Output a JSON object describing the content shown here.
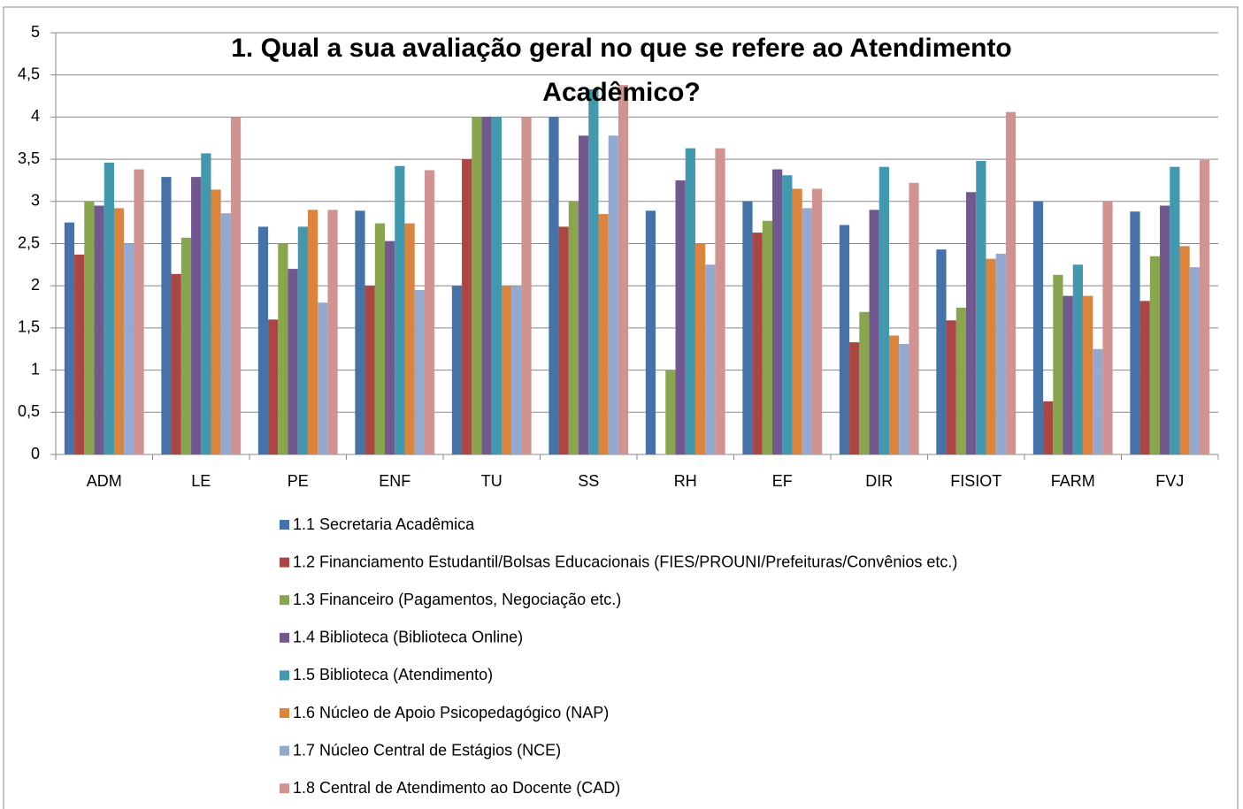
{
  "chart_data": {
    "type": "bar",
    "title": "1. Qual a sua avaliação geral no que se refere ao Atendimento Acadêmico?",
    "categories": [
      "ADM",
      "LE",
      "PE",
      "ENF",
      "TU",
      "SS",
      "RH",
      "EF",
      "DIR",
      "FISIOT",
      "FARM",
      "FVJ"
    ],
    "series": [
      {
        "name": "1.1 Secretaria Acadêmica",
        "color": "#4572a7",
        "values": [
          2.75,
          3.29,
          2.7,
          2.89,
          2.0,
          4.0,
          2.89,
          3.0,
          2.72,
          2.43,
          3.0,
          2.88
        ]
      },
      {
        "name": "1.2 Financiamento Estudantil/Bolsas Educacionais (FIES/PROUNI/Prefeituras/Convênios etc.)",
        "color": "#aa4643",
        "values": [
          2.37,
          2.14,
          1.6,
          2.0,
          3.5,
          2.7,
          0,
          2.63,
          1.33,
          1.59,
          0.63,
          1.82
        ]
      },
      {
        "name": "1.3 Financeiro (Pagamentos, Negociação etc.)",
        "color": "#89a54e",
        "values": [
          3.0,
          2.57,
          2.5,
          2.74,
          4.0,
          3.0,
          1.0,
          2.77,
          1.69,
          1.74,
          2.13,
          2.35
        ]
      },
      {
        "name": "1.4 Biblioteca (Biblioteca Online)",
        "color": "#71588f",
        "values": [
          2.95,
          3.29,
          2.2,
          2.53,
          4.0,
          3.78,
          3.25,
          3.38,
          2.9,
          3.11,
          1.88,
          2.95
        ]
      },
      {
        "name": "1.5 Biblioteca (Atendimento)",
        "color": "#4198af",
        "values": [
          3.46,
          3.57,
          2.7,
          3.42,
          4.0,
          4.33,
          3.63,
          3.31,
          3.41,
          3.48,
          2.25,
          3.41
        ]
      },
      {
        "name": "1.6 Núcleo de Apoio Psicopedagógico (NAP)",
        "color": "#db843d",
        "values": [
          2.92,
          3.14,
          2.9,
          2.74,
          2.0,
          2.85,
          2.5,
          3.15,
          1.41,
          2.32,
          1.88,
          2.47
        ]
      },
      {
        "name": "1.7 Núcleo Central de Estágios (NCE)",
        "color": "#93a9cf",
        "values": [
          2.5,
          2.86,
          1.8,
          1.95,
          2.0,
          3.78,
          2.25,
          2.92,
          1.31,
          2.38,
          1.25,
          2.22
        ]
      },
      {
        "name": "1.8 Central de Atendimento ao Docente (CAD)",
        "color": "#d19392",
        "values": [
          3.38,
          4.0,
          2.9,
          3.37,
          4.0,
          4.38,
          3.63,
          3.15,
          3.22,
          4.06,
          3.0,
          3.49
        ]
      }
    ],
    "ylim": [
      0,
      5
    ],
    "yticks": [
      0,
      {
        "value": 0.5,
        "label": "0,5"
      },
      1,
      {
        "value": 1.5,
        "label": "1,5"
      },
      2,
      {
        "value": 2.5,
        "label": "2,5"
      },
      3,
      {
        "value": 3.5,
        "label": "3,5"
      },
      4,
      {
        "value": 4.5,
        "label": "4,5"
      },
      5
    ],
    "grid": true,
    "legend": "bottom"
  }
}
